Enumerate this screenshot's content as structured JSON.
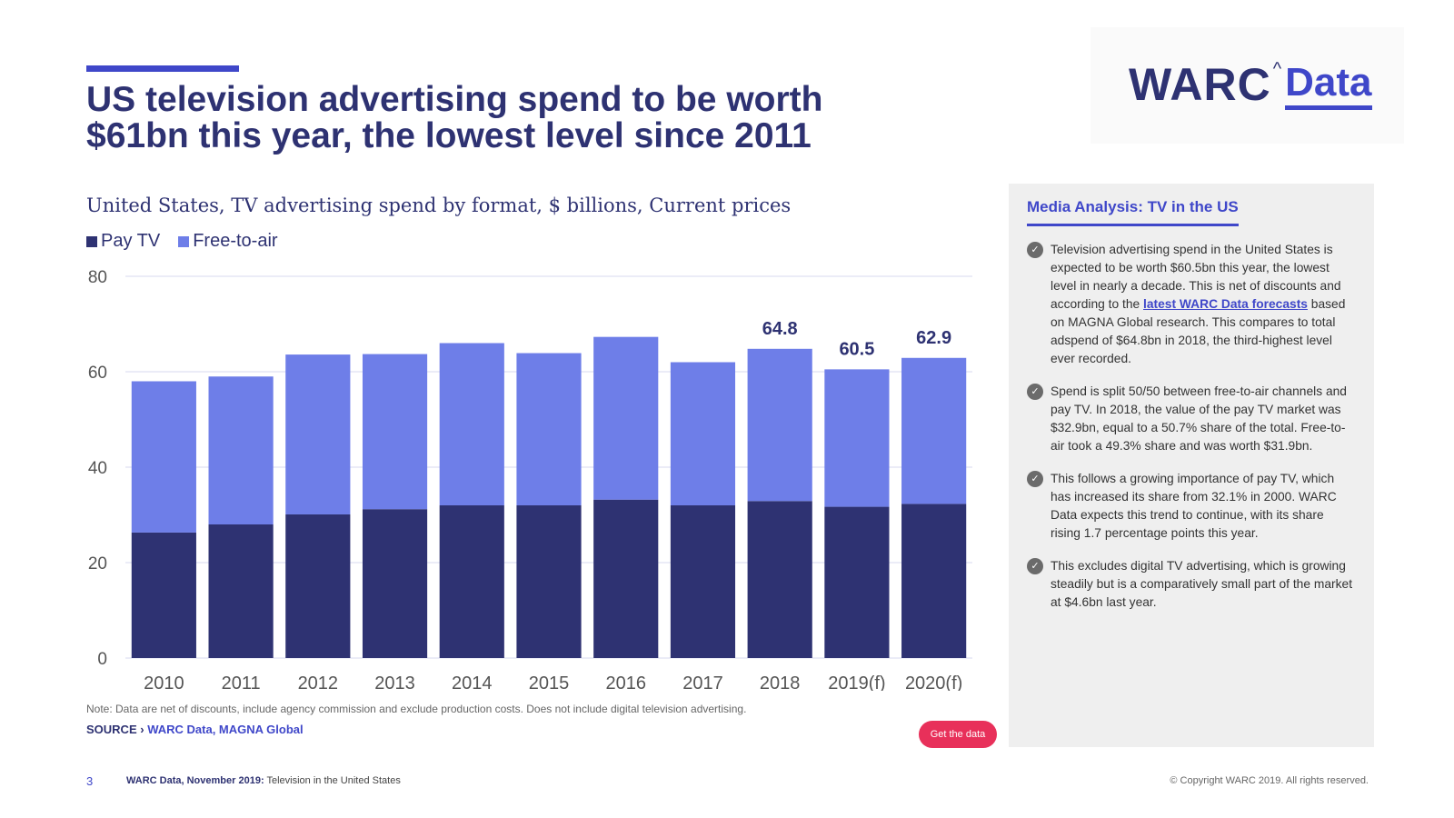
{
  "header": {
    "title": "US television advertising spend to be worth $61bn this year, the lowest level since 2011"
  },
  "logo": {
    "word": "WARC",
    "caret": "^",
    "data": "Data"
  },
  "colors": {
    "pay_tv": "#2e3272",
    "free_to_air": "#6e7ee8",
    "accent": "#3f47c9",
    "button": "#e8305a",
    "grid": "#d7d9ef"
  },
  "chart_data": {
    "type": "bar",
    "stacked": true,
    "title": "United States, TV advertising spend by format, $ billions, Current prices",
    "categories": [
      "2010",
      "2011",
      "2012",
      "2013",
      "2014",
      "2015",
      "2016",
      "2017",
      "2018",
      "2019(f)",
      "2020(f)"
    ],
    "series": [
      {
        "name": "Pay TV",
        "values": [
          26.3,
          28.0,
          30.1,
          31.2,
          32.0,
          32.0,
          33.2,
          32.0,
          32.9,
          31.7,
          32.3
        ]
      },
      {
        "name": "Free-to-air",
        "values": [
          31.7,
          31.0,
          33.5,
          32.5,
          34.0,
          31.9,
          34.1,
          30.0,
          31.9,
          28.8,
          30.6
        ]
      }
    ],
    "totals_labels": [
      {
        "category": "2018",
        "label": "64.8"
      },
      {
        "category": "2019(f)",
        "label": "60.5"
      },
      {
        "category": "2020(f)",
        "label": "62.9"
      }
    ],
    "ylim": [
      0,
      80
    ],
    "yticks": [
      "0",
      "20",
      "40",
      "60",
      "80"
    ],
    "xlabel": "",
    "ylabel": "",
    "grid": true,
    "legend": "top-left"
  },
  "note": "Note: Data are net of discounts, include agency commission and exclude production costs. Does not include digital television advertising.",
  "source": {
    "prefix": "SOURCE ›",
    "text": "WARC Data, MAGNA Global"
  },
  "get_data_label": "Get the data",
  "panel": {
    "title": "Media Analysis: TV in the US",
    "bullets": [
      {
        "before": "Television advertising spend in the United States is expected to be worth $60.5bn this year, the lowest level in nearly a decade. This is net of discounts and according to the ",
        "link": "latest WARC Data forecasts",
        "after": " based on MAGNA Global research. This compares to total adspend of $64.8bn in 2018, the third-highest level ever recorded."
      },
      {
        "text": "Spend is split 50/50 between free-to-air channels and pay TV. In 2018, the value of the pay TV market was $32.9bn, equal to a 50.7% share of the total. Free-to-air took a 49.3% share and was worth $31.9bn."
      },
      {
        "text": "This follows a growing importance of pay TV, which has increased its share from 32.1% in 2000. WARC Data expects this trend to continue, with its share rising 1.7 percentage points this year."
      },
      {
        "text": "This excludes digital TV advertising, which is growing steadily but is a comparatively small part of the market at $4.6bn last year."
      }
    ]
  },
  "footer": {
    "page": "3",
    "label": "WARC Data, November 2019:",
    "text": "Television in the United States",
    "copyright": "© Copyright WARC 2019. All rights reserved."
  }
}
